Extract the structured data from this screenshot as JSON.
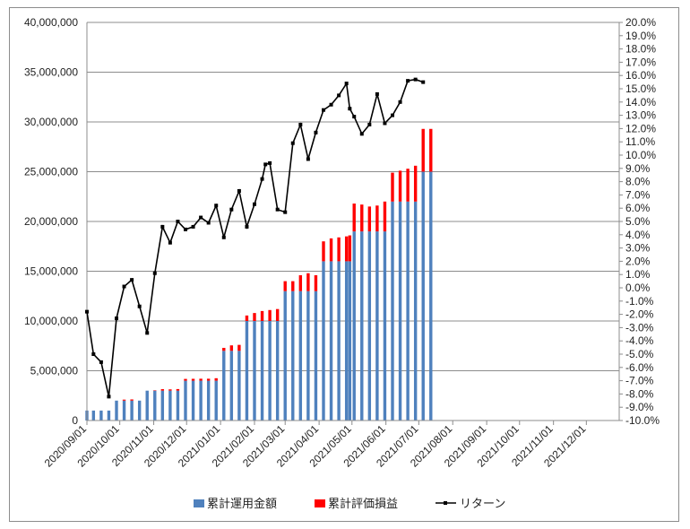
{
  "chart_data": {
    "type": "bar+line",
    "title": "",
    "left_axis": {
      "min": 0,
      "max": 40000000,
      "step": 5000000,
      "ticks": [
        "0",
        "5,000,000",
        "10,000,000",
        "15,000,000",
        "20,000,000",
        "25,000,000",
        "30,000,000",
        "35,000,000",
        "40,000,000"
      ]
    },
    "right_axis": {
      "min": -10,
      "max": 20,
      "step": 1,
      "unit": "%"
    },
    "x_axis": {
      "start": "2020-09-01",
      "end": "2021-12-31",
      "ticks": [
        "2020/09/01",
        "2020/10/01",
        "2020/11/01",
        "2020/12/01",
        "2021/01/01",
        "2021/02/01",
        "2021/03/01",
        "2021/04/01",
        "2021/05/01",
        "2021/06/01",
        "2021/07/01",
        "2021/08/01",
        "2021/09/01",
        "2021/10/01",
        "2021/11/01",
        "2021/12/01"
      ]
    },
    "grid": true,
    "legend_position": "bottom",
    "series": [
      {
        "name": "累計運用金額",
        "kind": "stacked-bar",
        "color": "#4f81bd"
      },
      {
        "name": "累計評価損益",
        "kind": "stacked-bar",
        "color": "#ff0000"
      },
      {
        "name": "リターン",
        "kind": "line",
        "color": "#000000",
        "axis": "right"
      }
    ],
    "bars": [
      {
        "date": "2020-09-01",
        "invested": 1000000,
        "gain": -10000
      },
      {
        "date": "2020-09-07",
        "invested": 1000000,
        "gain": -50000
      },
      {
        "date": "2020-09-14",
        "invested": 1000000,
        "gain": -60000
      },
      {
        "date": "2020-09-21",
        "invested": 1000000,
        "gain": -80000
      },
      {
        "date": "2020-09-28",
        "invested": 2000000,
        "gain": -60000
      },
      {
        "date": "2020-10-05",
        "invested": 2000000,
        "gain": 100000
      },
      {
        "date": "2020-10-12",
        "invested": 2000000,
        "gain": 120000
      },
      {
        "date": "2020-10-19",
        "invested": 2000000,
        "gain": -40000
      },
      {
        "date": "2020-10-26",
        "invested": 3000000,
        "gain": -90000
      },
      {
        "date": "2020-11-02",
        "invested": 3000000,
        "gain": 40000
      },
      {
        "date": "2020-11-09",
        "invested": 3000000,
        "gain": 150000
      },
      {
        "date": "2020-11-16",
        "invested": 3000000,
        "gain": 130000
      },
      {
        "date": "2020-11-23",
        "invested": 3000000,
        "gain": 160000
      },
      {
        "date": "2020-11-30",
        "invested": 4000000,
        "gain": 180000
      },
      {
        "date": "2020-12-07",
        "invested": 4000000,
        "gain": 190000
      },
      {
        "date": "2020-12-14",
        "invested": 4000000,
        "gain": 200000
      },
      {
        "date": "2020-12-21",
        "invested": 4000000,
        "gain": 200000
      },
      {
        "date": "2020-12-28",
        "invested": 4000000,
        "gain": 250000
      },
      {
        "date": "2021-01-04",
        "invested": 7000000,
        "gain": 300000
      },
      {
        "date": "2021-01-11",
        "invested": 7000000,
        "gain": 550000
      },
      {
        "date": "2021-01-18",
        "invested": 7000000,
        "gain": 600000
      },
      {
        "date": "2021-01-25",
        "invested": 10000000,
        "gain": 550000
      },
      {
        "date": "2021-02-01",
        "invested": 10000000,
        "gain": 800000
      },
      {
        "date": "2021-02-08",
        "invested": 10000000,
        "gain": 1000000
      },
      {
        "date": "2021-02-15",
        "invested": 10000000,
        "gain": 1100000
      },
      {
        "date": "2021-02-22",
        "invested": 10000000,
        "gain": 1200000
      },
      {
        "date": "2021-03-01",
        "invested": 13000000,
        "gain": 1000000
      },
      {
        "date": "2021-03-08",
        "invested": 13000000,
        "gain": 1000000
      },
      {
        "date": "2021-03-15",
        "invested": 13000000,
        "gain": 1600000
      },
      {
        "date": "2021-03-22",
        "invested": 13000000,
        "gain": 1800000
      },
      {
        "date": "2021-03-29",
        "invested": 13000000,
        "gain": 1600000
      },
      {
        "date": "2021-04-05",
        "invested": 16000000,
        "gain": 2000000
      },
      {
        "date": "2021-04-12",
        "invested": 16000000,
        "gain": 2300000
      },
      {
        "date": "2021-04-19",
        "invested": 16000000,
        "gain": 2400000
      },
      {
        "date": "2021-04-26",
        "invested": 16000000,
        "gain": 2500000
      },
      {
        "date": "2021-04-29",
        "invested": 16000000,
        "gain": 2600000
      },
      {
        "date": "2021-05-03",
        "invested": 19000000,
        "gain": 2800000
      },
      {
        "date": "2021-05-10",
        "invested": 19000000,
        "gain": 2700000
      },
      {
        "date": "2021-05-17",
        "invested": 19000000,
        "gain": 2500000
      },
      {
        "date": "2021-05-24",
        "invested": 19000000,
        "gain": 2600000
      },
      {
        "date": "2021-05-31",
        "invested": 19000000,
        "gain": 3000000
      },
      {
        "date": "2021-06-07",
        "invested": 22000000,
        "gain": 2900000
      },
      {
        "date": "2021-06-14",
        "invested": 22000000,
        "gain": 3100000
      },
      {
        "date": "2021-06-21",
        "invested": 22000000,
        "gain": 3300000
      },
      {
        "date": "2021-06-28",
        "invested": 22000000,
        "gain": 3600000
      },
      {
        "date": "2021-07-05",
        "invested": 25000000,
        "gain": 4300000
      },
      {
        "date": "2021-07-12",
        "invested": 25000000,
        "gain": 4300000
      }
    ],
    "return_line": [
      {
        "date": "2020-09-01",
        "value": -1.8
      },
      {
        "date": "2020-09-07",
        "value": -5.0
      },
      {
        "date": "2020-09-14",
        "value": -5.6
      },
      {
        "date": "2020-09-21",
        "value": -8.2
      },
      {
        "date": "2020-09-28",
        "value": -2.3
      },
      {
        "date": "2020-10-05",
        "value": 0.1
      },
      {
        "date": "2020-10-12",
        "value": 0.6
      },
      {
        "date": "2020-10-19",
        "value": -1.4
      },
      {
        "date": "2020-10-26",
        "value": -3.4
      },
      {
        "date": "2020-11-02",
        "value": 1.1
      },
      {
        "date": "2020-11-09",
        "value": 4.6
      },
      {
        "date": "2020-11-16",
        "value": 3.4
      },
      {
        "date": "2020-11-23",
        "value": 5.0
      },
      {
        "date": "2020-11-30",
        "value": 4.4
      },
      {
        "date": "2020-12-07",
        "value": 4.6
      },
      {
        "date": "2020-12-14",
        "value": 5.3
      },
      {
        "date": "2020-12-21",
        "value": 4.9
      },
      {
        "date": "2020-12-28",
        "value": 6.2
      },
      {
        "date": "2021-01-04",
        "value": 3.8
      },
      {
        "date": "2021-01-11",
        "value": 5.9
      },
      {
        "date": "2021-01-18",
        "value": 7.3
      },
      {
        "date": "2021-01-25",
        "value": 4.6
      },
      {
        "date": "2021-02-01",
        "value": 6.3
      },
      {
        "date": "2021-02-08",
        "value": 8.2
      },
      {
        "date": "2021-02-11",
        "value": 9.3
      },
      {
        "date": "2021-02-15",
        "value": 9.4
      },
      {
        "date": "2021-02-22",
        "value": 5.9
      },
      {
        "date": "2021-03-01",
        "value": 5.7
      },
      {
        "date": "2021-03-08",
        "value": 10.9
      },
      {
        "date": "2021-03-15",
        "value": 12.3
      },
      {
        "date": "2021-03-22",
        "value": 9.7
      },
      {
        "date": "2021-03-29",
        "value": 11.7
      },
      {
        "date": "2021-04-05",
        "value": 13.4
      },
      {
        "date": "2021-04-12",
        "value": 13.8
      },
      {
        "date": "2021-04-19",
        "value": 14.5
      },
      {
        "date": "2021-04-26",
        "value": 15.4
      },
      {
        "date": "2021-04-29",
        "value": 13.5
      },
      {
        "date": "2021-05-03",
        "value": 12.9
      },
      {
        "date": "2021-05-10",
        "value": 11.6
      },
      {
        "date": "2021-05-17",
        "value": 12.3
      },
      {
        "date": "2021-05-24",
        "value": 14.6
      },
      {
        "date": "2021-05-31",
        "value": 12.4
      },
      {
        "date": "2021-06-07",
        "value": 13.0
      },
      {
        "date": "2021-06-14",
        "value": 14.0
      },
      {
        "date": "2021-06-21",
        "value": 15.6
      },
      {
        "date": "2021-06-28",
        "value": 15.7
      },
      {
        "date": "2021-07-05",
        "value": 15.5
      }
    ]
  }
}
